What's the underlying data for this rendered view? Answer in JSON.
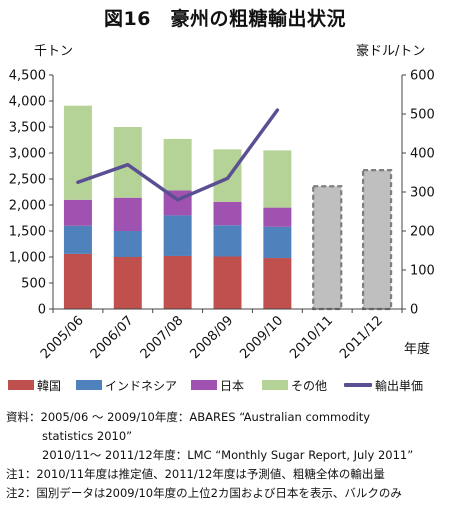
{
  "title": "図16　豪州の粗糖輸出状況",
  "left_unit": "千トン",
  "right_unit": "豪ドル/トン",
  "x_unit": "年度",
  "colors": {
    "korea": "#c0504d",
    "indonesia": "#4f81bd",
    "japan": "#a052b0",
    "others": "#b5d396",
    "price": "#5b4f93",
    "projected": "#bfbfbf"
  },
  "legend": {
    "korea": "韓国",
    "indonesia": "インドネシア",
    "japan": "日本",
    "others": "その他",
    "price": "輸出単価"
  },
  "notes": {
    "source_1": "資料：2005/06 ～ 2009/10年度：ABARES “Australian commodity",
    "source_2": "statistics 2010”",
    "source_3": "2010/11～ 2011/12年度：LMC “Monthly Sugar Report, July 2011”",
    "note_1": "注1：2010/11年度は推定値、2011/12年度は予測値、粗糖全体の輸出量",
    "note_2": "注2：国別データは2009/10年度の上位2カ国および日本を表示、バルクのみ"
  },
  "chart_data": {
    "type": "bar",
    "stacked": true,
    "categories": [
      "2005/06",
      "2006/07",
      "2007/08",
      "2008/09",
      "2009/10",
      "2010/11",
      "2011/12"
    ],
    "series": [
      {
        "name": "韓国",
        "values": [
          1060,
          1000,
          1020,
          1010,
          980,
          null,
          null
        ]
      },
      {
        "name": "インドネシア",
        "values": [
          540,
          500,
          780,
          600,
          600,
          null,
          null
        ]
      },
      {
        "name": "日本",
        "values": [
          500,
          640,
          480,
          450,
          370,
          null,
          null
        ]
      },
      {
        "name": "その他",
        "values": [
          1810,
          1360,
          990,
          1010,
          1100,
          null,
          null
        ]
      }
    ],
    "projected_totals": [
      null,
      null,
      null,
      null,
      null,
      2360,
      2670
    ],
    "line_series": {
      "name": "輸出単価",
      "axis": "right",
      "values": [
        325,
        370,
        280,
        335,
        510,
        null,
        null
      ]
    },
    "ylim_left": [
      0,
      4500
    ],
    "ylim_right": [
      0,
      600
    ],
    "yticks_left": [
      "0",
      "500",
      "1,000",
      "1,500",
      "2,000",
      "2,500",
      "3,000",
      "3,500",
      "4,000",
      "4,500"
    ],
    "yticks_right": [
      "0",
      "100",
      "200",
      "300",
      "400",
      "500",
      "600"
    ],
    "grid": false,
    "legend_position": "bottom"
  }
}
